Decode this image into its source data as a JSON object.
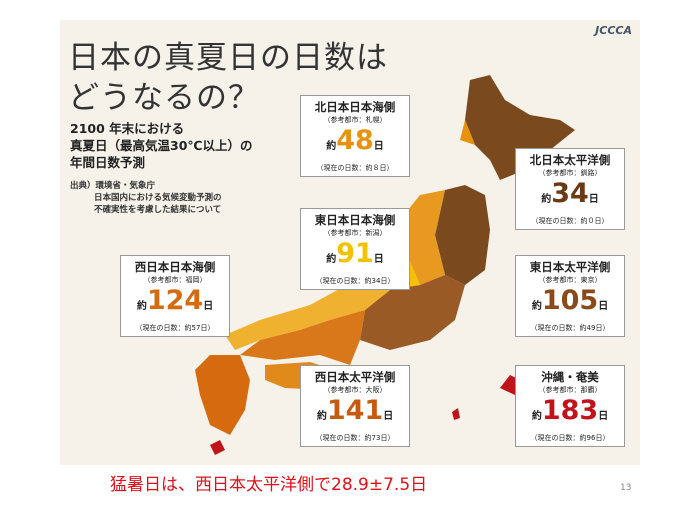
{
  "header": {
    "title_lines": [
      "日本の真夏日の日数は",
      "どうなるの？"
    ],
    "logo": "JCCCA"
  },
  "subtitle_lines": [
    "2100 年末における",
    "真夏日（最高気温30℃以上）の",
    "年間日数予測"
  ],
  "source_lines": [
    "出典）環境省・気象庁",
    "日本国内における気候変動予測の",
    "不確実性を考慮した結果について"
  ],
  "regions": [
    {
      "name": "北日本日本海側",
      "city": "（参考都市：札幌）",
      "prefix": "約",
      "days": 48,
      "unit": "日",
      "current": "（現在の日数：約８日）",
      "color": "#e8920f"
    },
    {
      "name": "北日本太平洋側",
      "city": "（参考都市：釧路）",
      "prefix": "約",
      "days": 34,
      "unit": "日",
      "current": "（現在の日数：約０日）",
      "color": "#6b3a12"
    },
    {
      "name": "東日本日本海側",
      "city": "（参考都市：新潟）",
      "prefix": "約",
      "days": 91,
      "unit": "日",
      "current": "（現在の日数：約34日）",
      "color": "#f2c200"
    },
    {
      "name": "西日本日本海側",
      "city": "（参考都市：福岡）",
      "prefix": "約",
      "days": 124,
      "unit": "日",
      "current": "（現在の日数：約57日）",
      "color": "#d66a0f"
    },
    {
      "name": "東日本太平洋側",
      "city": "（参考都市：東京）",
      "prefix": "約",
      "days": 105,
      "unit": "日",
      "current": "（現在の日数：約49日）",
      "color": "#8a4a1a"
    },
    {
      "name": "西日本太平洋側",
      "city": "（参考都市：大阪）",
      "prefix": "約",
      "days": 141,
      "unit": "日",
      "current": "（現在の日数：約73日）",
      "color": "#c85a10"
    },
    {
      "name": "沖縄・奄美",
      "city": "（参考都市：那覇）",
      "prefix": "約",
      "days": 183,
      "unit": "日",
      "current": "（現在の日数：約96日）",
      "color": "#c0141a"
    }
  ],
  "caption": "猛暑日は、西日本太平洋側で28.9±7.5日",
  "page_number": "13"
}
